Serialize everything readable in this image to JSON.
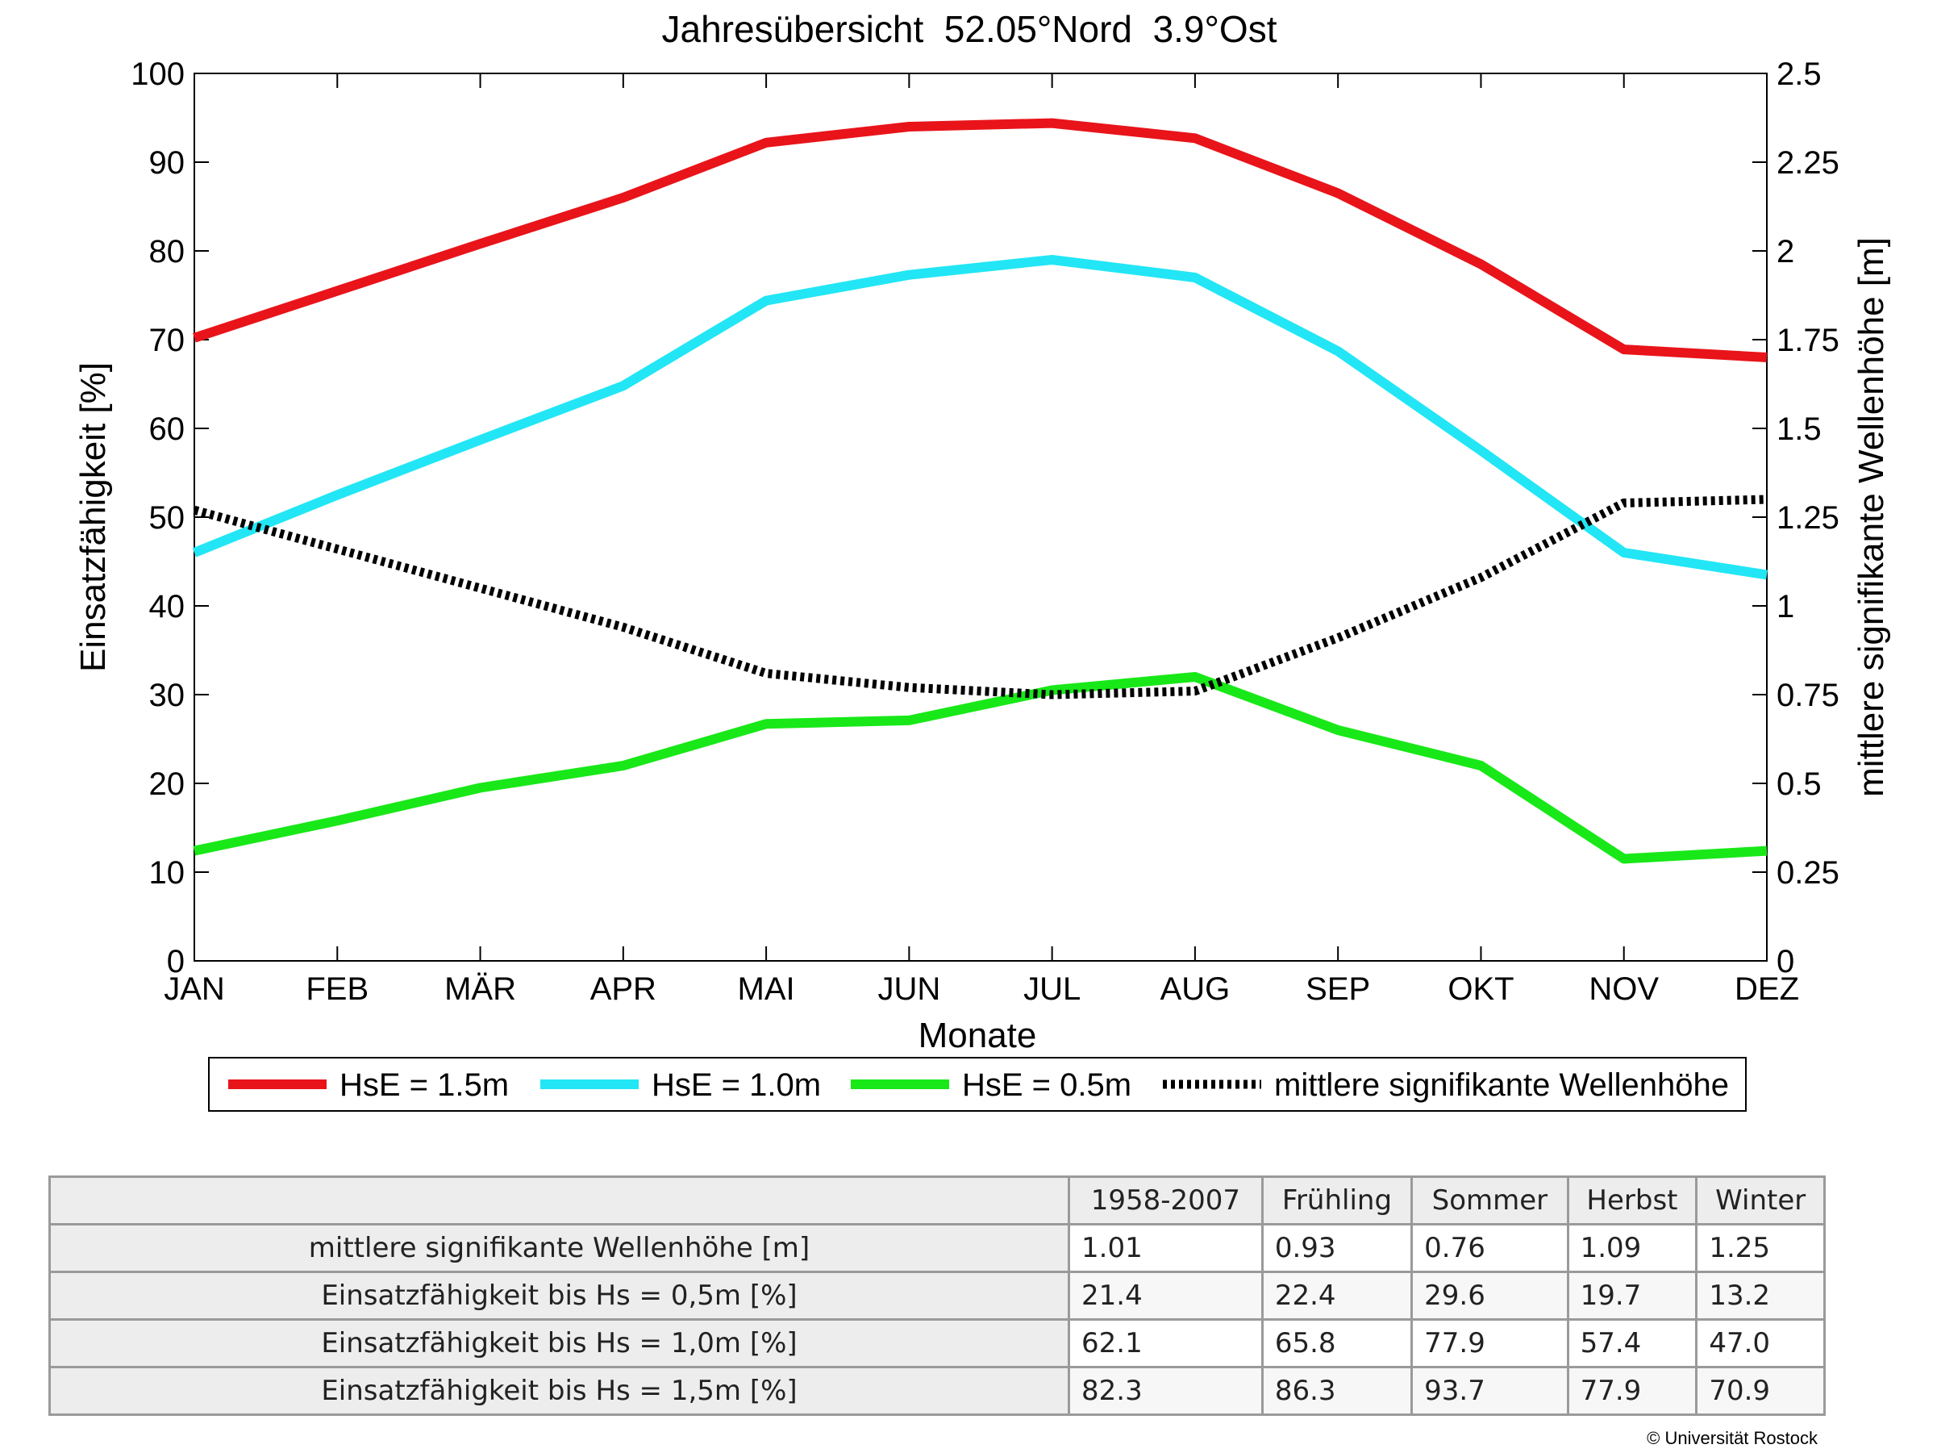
{
  "chart_data": {
    "type": "line",
    "title": "Jahresübersicht  52.05°Nord  3.9°Ost",
    "xlabel": "Monate",
    "ylabel": "Einsatzfähigkeit [%]",
    "y2label": "mittlere signifikante Wellenhöhe [m]",
    "categories": [
      "JAN",
      "FEB",
      "MÄR",
      "APR",
      "MAI",
      "JUN",
      "JUL",
      "AUG",
      "SEP",
      "OKT",
      "NOV",
      "DEZ"
    ],
    "ylim": [
      0,
      100
    ],
    "y2lim": [
      0,
      2.5
    ],
    "yticks": [
      "0",
      "10",
      "20",
      "30",
      "40",
      "50",
      "60",
      "70",
      "80",
      "90",
      "100"
    ],
    "y2ticks": [
      "0",
      "0.25",
      "0.5",
      "0.75",
      "1",
      "1.25",
      "1.5",
      "1.75",
      "2",
      "2.25",
      "2.5"
    ],
    "grid": false,
    "legend_position": "bottom",
    "series": [
      {
        "name": "HsE = 1.5m",
        "axis": "left",
        "color": "#e8141a",
        "style": "solid",
        "values": [
          70.2,
          75.5,
          80.8,
          86.0,
          92.2,
          94.0,
          94.4,
          92.7,
          86.5,
          78.5,
          68.9,
          68.0
        ]
      },
      {
        "name": "HsE = 1.0m",
        "axis": "left",
        "color": "#22e6f5",
        "style": "solid",
        "values": [
          46.0,
          52.5,
          58.7,
          64.8,
          74.4,
          77.3,
          79.0,
          77.0,
          68.7,
          57.5,
          46.0,
          43.5
        ]
      },
      {
        "name": "HsE = 0.5m",
        "axis": "left",
        "color": "#18e818",
        "style": "solid",
        "values": [
          12.4,
          15.8,
          19.5,
          22.0,
          26.7,
          27.1,
          30.5,
          32.0,
          26.0,
          22.0,
          11.5,
          12.4
        ]
      },
      {
        "name": "mittlere signifikante Wellenhöhe",
        "axis": "right",
        "color": "#000000",
        "style": "dotted",
        "values": [
          1.27,
          1.16,
          1.05,
          0.94,
          0.81,
          0.77,
          0.75,
          0.76,
          0.91,
          1.08,
          1.29,
          1.3
        ]
      }
    ]
  },
  "table": {
    "headers": [
      "",
      "1958-2007",
      "Frühling",
      "Sommer",
      "Herbst",
      "Winter"
    ],
    "rows": [
      {
        "label": "mittlere signifikante Wellenhöhe [m]",
        "values": [
          "1.01",
          "0.93",
          "0.76",
          "1.09",
          "1.25"
        ]
      },
      {
        "label": "Einsatzfähigkeit bis Hs = 0,5m [%]",
        "values": [
          "21.4",
          "22.4",
          "29.6",
          "19.7",
          "13.2"
        ]
      },
      {
        "label": "Einsatzfähigkeit bis Hs = 1,0m [%]",
        "values": [
          "62.1",
          "65.8",
          "77.9",
          "57.4",
          "47.0"
        ]
      },
      {
        "label": "Einsatzfähigkeit bis Hs = 1,5m [%]",
        "values": [
          "82.3",
          "86.3",
          "93.7",
          "77.9",
          "70.9"
        ]
      }
    ]
  },
  "copyright": "© Universität Rostock"
}
